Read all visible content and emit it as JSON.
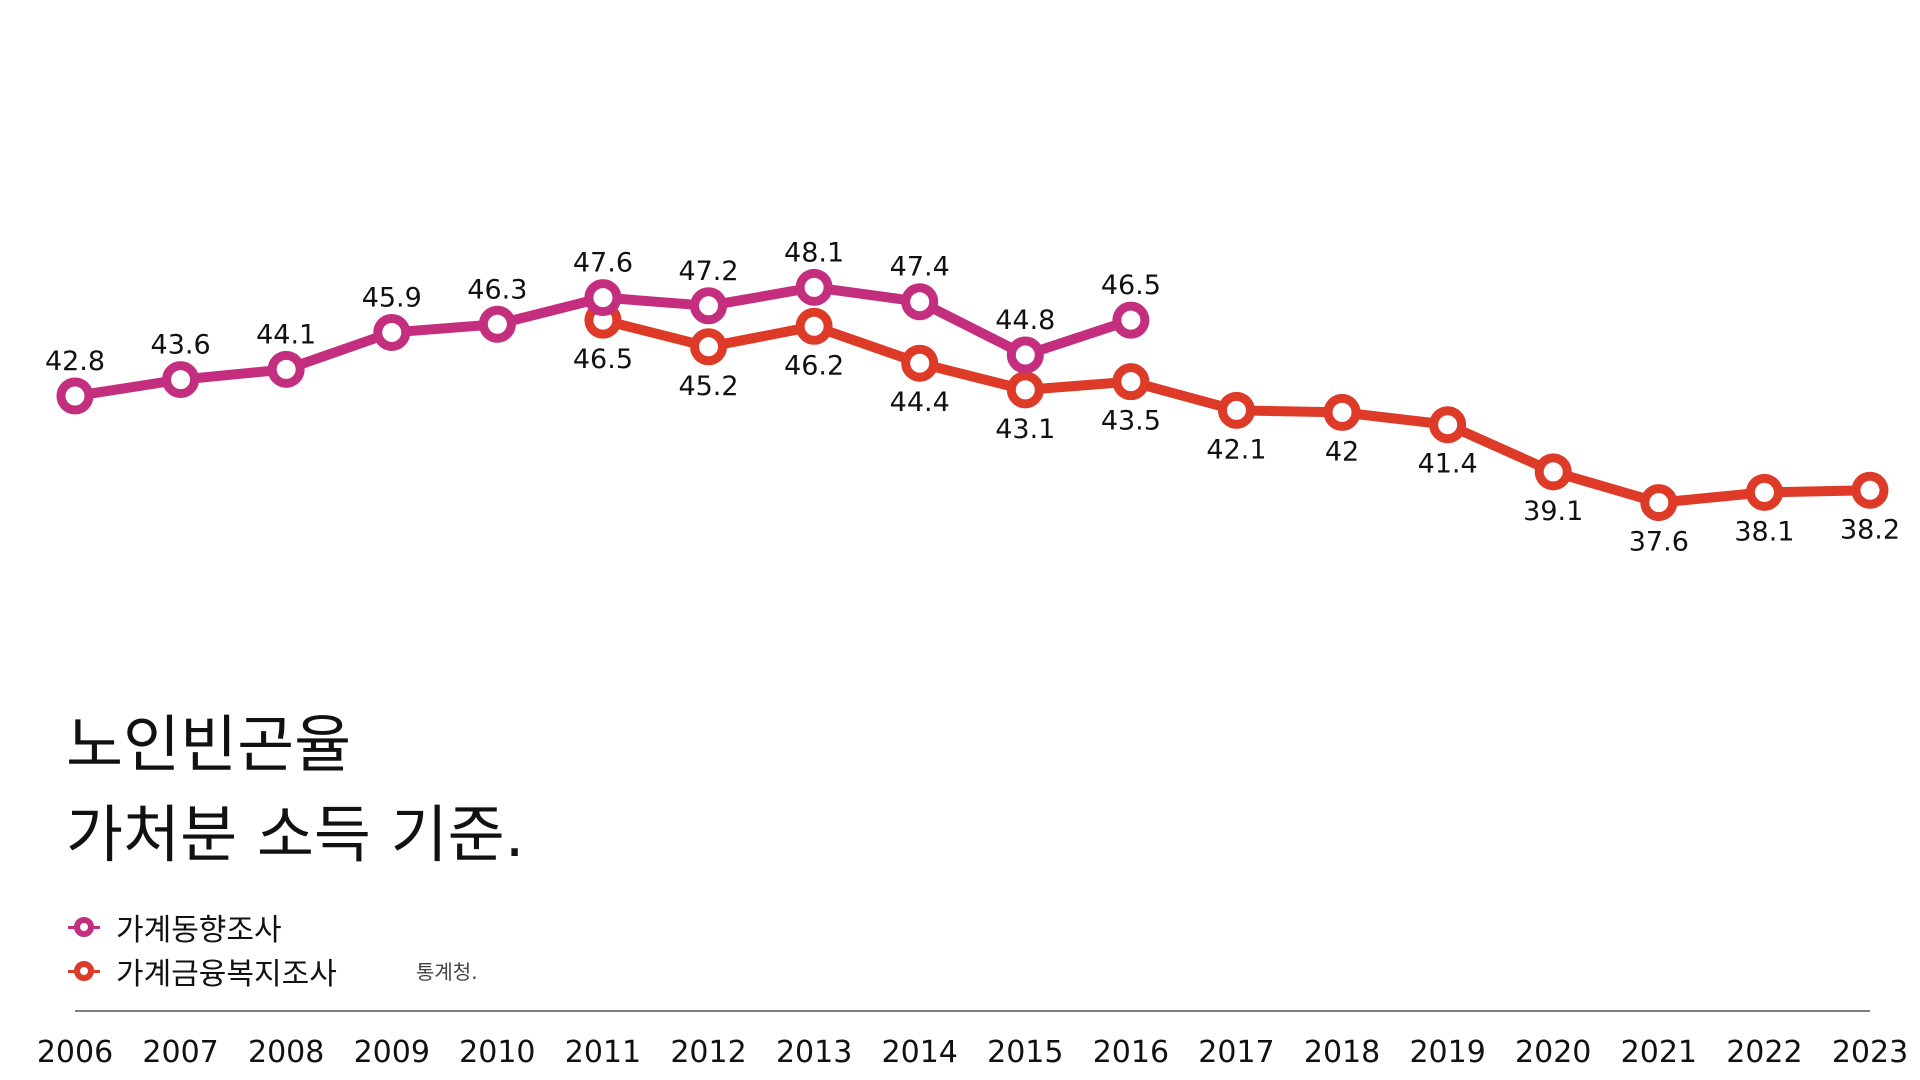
{
  "title": {
    "line1": "노인빈곤율",
    "line2": "가처분 소득 기준."
  },
  "source": "통계청.",
  "legend": [
    {
      "label": "가계동향조사",
      "color": "#c42e7e"
    },
    {
      "label": "가계금융복지조사",
      "color": "#dd3a28"
    }
  ],
  "chart_data": {
    "type": "line",
    "title": "노인빈곤율",
    "subtitle": "가처분 소득 기준.",
    "x": [
      "2006",
      "2007",
      "2008",
      "2009",
      "2010",
      "2011",
      "2012",
      "2013",
      "2014",
      "2015",
      "2016",
      "2017",
      "2018",
      "2019",
      "2020",
      "2021",
      "2022",
      "2023"
    ],
    "ylim": [
      30,
      55
    ],
    "grid": false,
    "legend_position": "bottom-left",
    "series": [
      {
        "name": "가계동향조사",
        "color": "#c42e7e",
        "x": [
          "2006",
          "2007",
          "2008",
          "2009",
          "2010",
          "2011",
          "2012",
          "2013",
          "2014",
          "2015",
          "2016"
        ],
        "values": [
          42.8,
          43.6,
          44.1,
          45.9,
          46.3,
          47.6,
          47.2,
          48.1,
          47.4,
          44.8,
          46.5
        ],
        "labels": [
          "42.8",
          "43.6",
          "44.1",
          "45.9",
          "46.3",
          "47.6",
          "47.2",
          "48.1",
          "47.4",
          "44.8",
          "46.5"
        ],
        "label_position": "above"
      },
      {
        "name": "가계금융복지조사",
        "color": "#dd3a28",
        "x": [
          "2011",
          "2012",
          "2013",
          "2014",
          "2015",
          "2016",
          "2017",
          "2018",
          "2019",
          "2020",
          "2021",
          "2022",
          "2023"
        ],
        "values": [
          46.5,
          45.2,
          46.2,
          44.4,
          43.1,
          43.5,
          42.1,
          42,
          41.4,
          39.1,
          37.6,
          38.1,
          38.2
        ],
        "labels": [
          "46.5",
          "45.2",
          "46.2",
          "44.4",
          "43.1",
          "43.5",
          "42.1",
          "42",
          "41.4",
          "39.1",
          "37.6",
          "38.1",
          "38.2"
        ],
        "label_position": "below"
      }
    ]
  }
}
